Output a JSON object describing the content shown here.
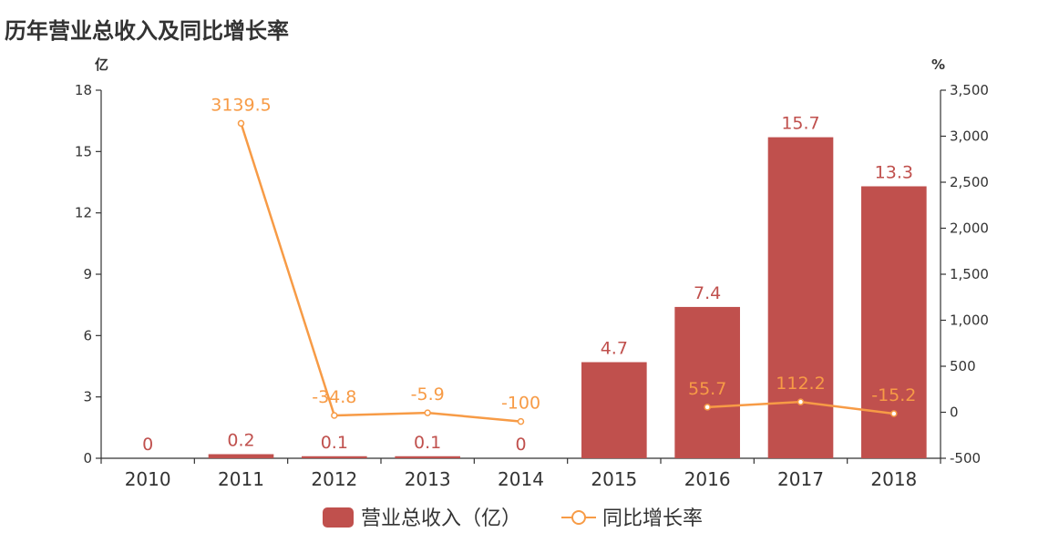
{
  "chart_data": {
    "type": "bar+line",
    "title": "历年营业总收入及同比增长率",
    "categories": [
      "2010",
      "2011",
      "2012",
      "2013",
      "2014",
      "2015",
      "2016",
      "2017",
      "2018"
    ],
    "left_axis": {
      "unit": "亿",
      "ylim": [
        0,
        18
      ],
      "ticks": [
        "0",
        "3",
        "6",
        "9",
        "12",
        "15",
        "18"
      ]
    },
    "right_axis": {
      "unit": "%",
      "ylim": [
        -500,
        3500
      ],
      "ticks": [
        "-500",
        "0",
        "500",
        "1,000",
        "1,500",
        "2,000",
        "2,500",
        "3,000",
        "3,500"
      ]
    },
    "series": [
      {
        "name": "营业总收入（亿）",
        "type": "bar",
        "axis": "left",
        "color": "#c0504d",
        "values": [
          0,
          0.2,
          0.1,
          0.1,
          0,
          4.7,
          7.4,
          15.7,
          13.3
        ],
        "labels": [
          "0",
          "0.2",
          "0.1",
          "0.1",
          "0",
          "4.7",
          "7.4",
          "15.7",
          "13.3"
        ]
      },
      {
        "name": "同比增长率",
        "type": "line",
        "axis": "right",
        "color": "#f79b46",
        "values": [
          null,
          3139.5,
          -34.8,
          -5.9,
          -100,
          null,
          55.7,
          112.2,
          -15.2
        ],
        "labels": [
          null,
          "3139.5",
          "-34.8",
          "-5.9",
          "-100",
          null,
          "55.7",
          "112.2",
          "-15.2"
        ]
      }
    ],
    "grid": false,
    "legend_position": "bottom-center"
  }
}
